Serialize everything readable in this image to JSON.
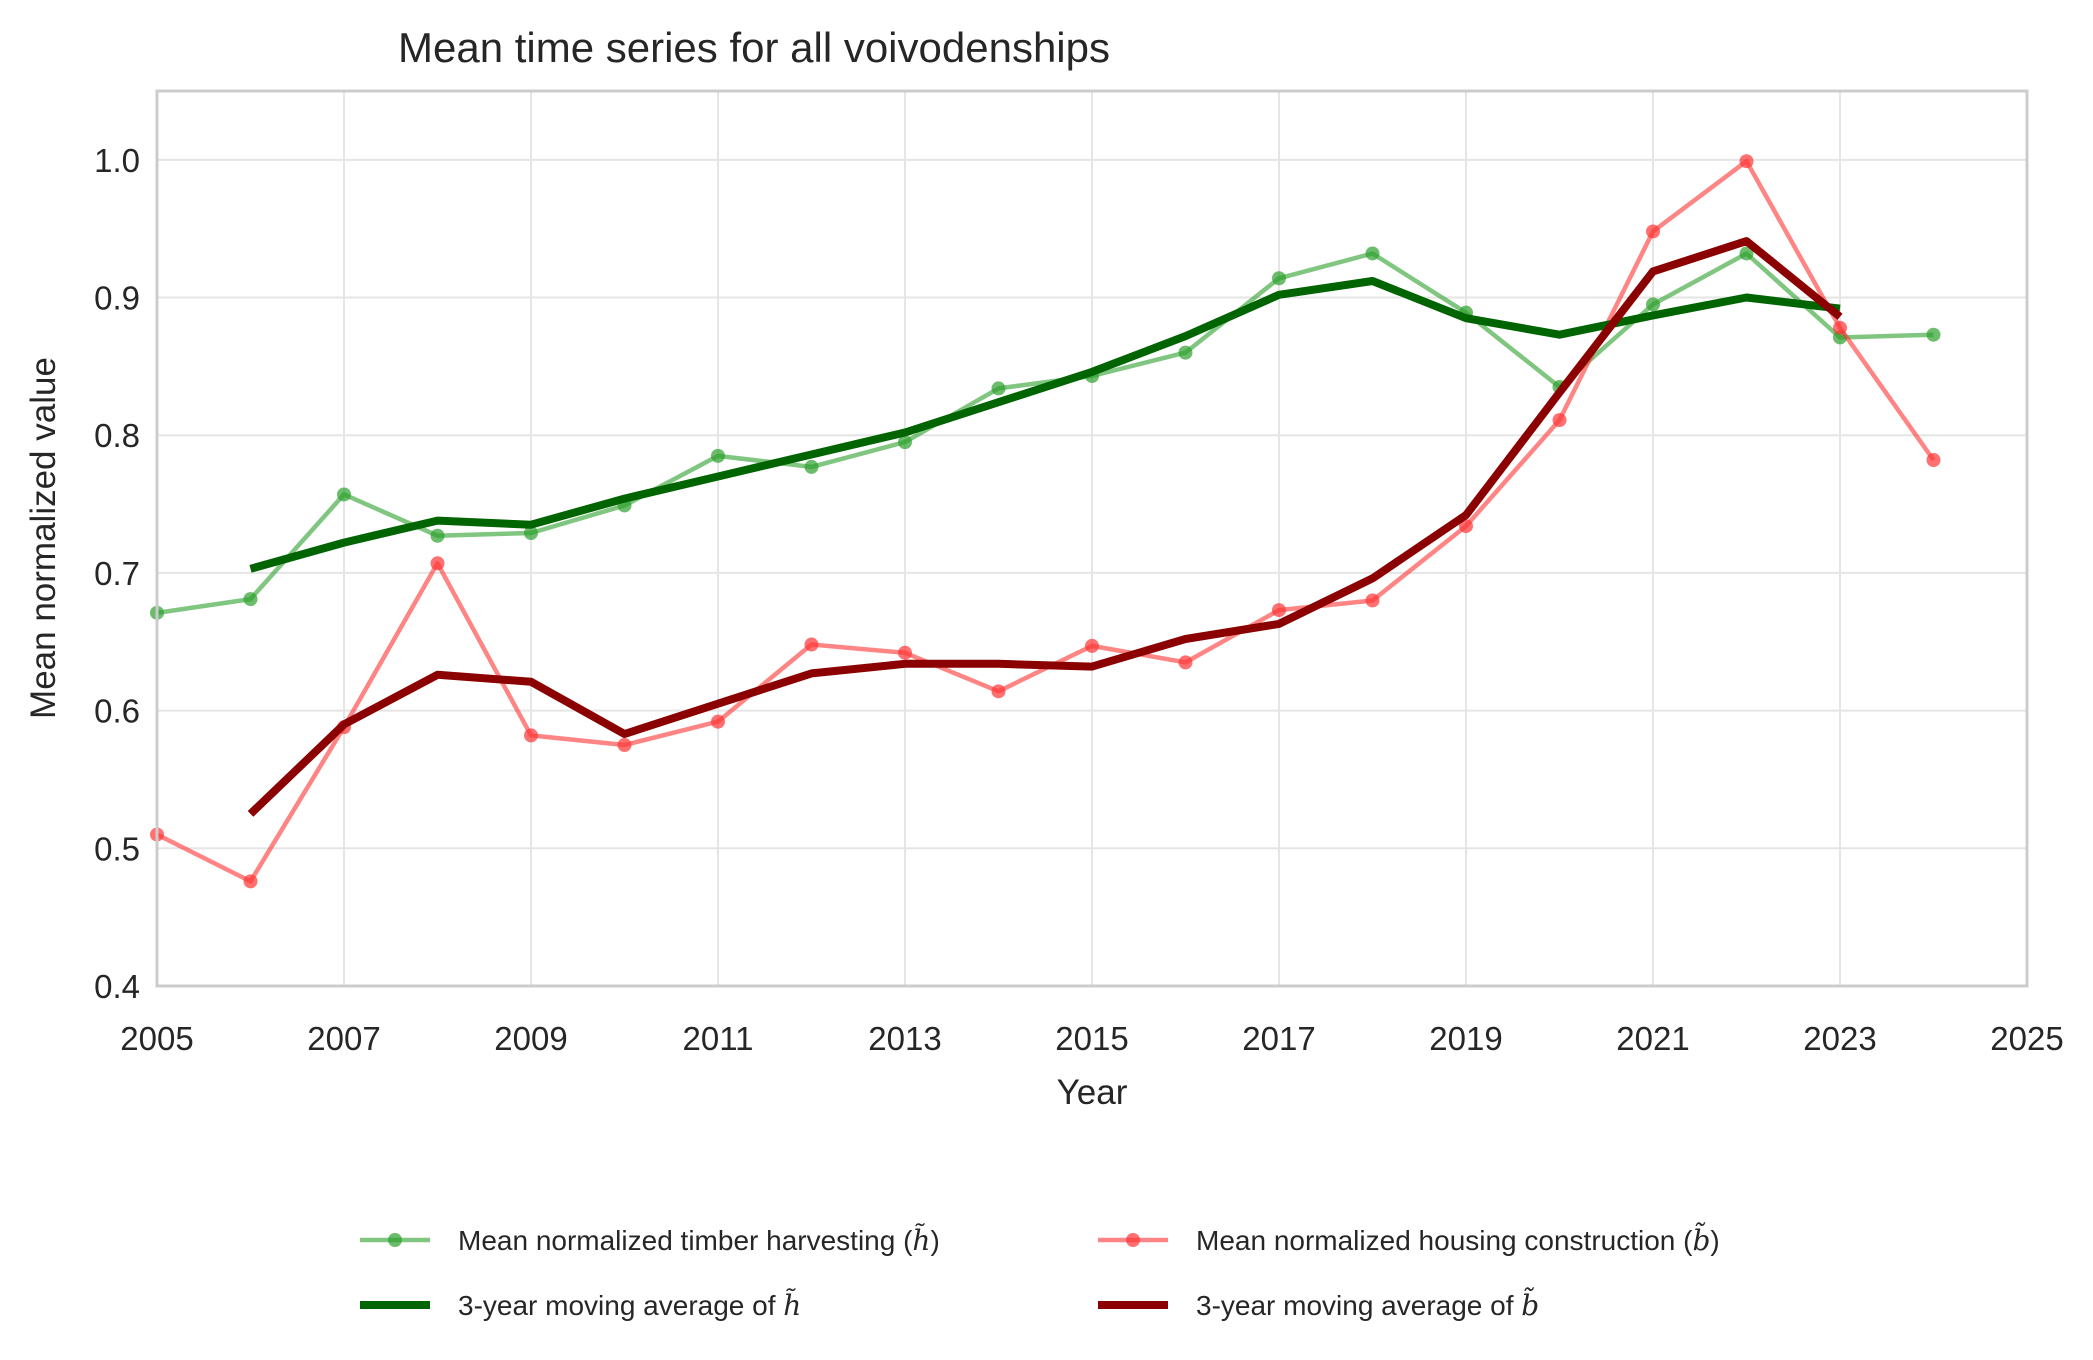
{
  "chart_data": {
    "type": "line",
    "title": "Mean time series for all voivodenships",
    "xlabel": "Year",
    "ylabel": "Mean normalized value",
    "xlim": [
      2005,
      2025
    ],
    "ylim": [
      0.4,
      1.05
    ],
    "xticks": [
      2005,
      2007,
      2009,
      2011,
      2013,
      2015,
      2017,
      2019,
      2021,
      2023,
      2025
    ],
    "yticks": [
      0.4,
      0.5,
      0.6,
      0.7,
      0.8,
      0.9,
      1.0
    ],
    "xtick_labels": [
      "2005",
      "2007",
      "2009",
      "2011",
      "2013",
      "2015",
      "2017",
      "2019",
      "2021",
      "2023",
      "2025"
    ],
    "ytick_labels": [
      "0.4",
      "0.5",
      "0.6",
      "0.7",
      "0.8",
      "0.9",
      "1.0"
    ],
    "grid": true,
    "legend_position": "bottom-center",
    "series": [
      {
        "name": "Mean normalized timber harvesting (h̃)",
        "legend_main": "Mean normalized timber harvesting (",
        "legend_symbol": "h̃",
        "legend_tail": ")",
        "color": "#2ca02c",
        "style": "line-markers",
        "x": [
          2005,
          2006,
          2007,
          2008,
          2009,
          2010,
          2011,
          2012,
          2013,
          2014,
          2015,
          2016,
          2017,
          2018,
          2019,
          2020,
          2021,
          2022,
          2023,
          2024
        ],
        "values": [
          0.671,
          0.681,
          0.757,
          0.727,
          0.729,
          0.749,
          0.785,
          0.777,
          0.795,
          0.834,
          0.843,
          0.86,
          0.914,
          0.932,
          0.889,
          0.835,
          0.895,
          0.932,
          0.871,
          0.873
        ]
      },
      {
        "name": "Mean normalized housing construction (b̃)",
        "legend_main": "Mean normalized housing construction (",
        "legend_symbol": "b̃",
        "legend_tail": ")",
        "color": "#ff3333",
        "style": "line-markers",
        "x": [
          2005,
          2006,
          2007,
          2008,
          2009,
          2010,
          2011,
          2012,
          2013,
          2014,
          2015,
          2016,
          2017,
          2018,
          2019,
          2020,
          2021,
          2022,
          2023,
          2024
        ],
        "values": [
          0.51,
          0.476,
          0.588,
          0.707,
          0.582,
          0.575,
          0.592,
          0.648,
          0.642,
          0.614,
          0.647,
          0.635,
          0.673,
          0.68,
          0.734,
          0.811,
          0.948,
          0.999,
          0.878,
          0.782
        ]
      },
      {
        "name": "3-year moving average of h̃",
        "legend_main": "3-year moving average of ",
        "legend_symbol": "h̃",
        "legend_tail": "",
        "color": "#006400",
        "style": "thick-line",
        "x": [
          2006,
          2007,
          2008,
          2009,
          2010,
          2011,
          2012,
          2013,
          2014,
          2015,
          2016,
          2017,
          2018,
          2019,
          2020,
          2021,
          2022,
          2023
        ],
        "values": [
          0.703,
          0.722,
          0.738,
          0.735,
          0.754,
          0.77,
          0.786,
          0.802,
          0.824,
          0.846,
          0.872,
          0.902,
          0.912,
          0.885,
          0.873,
          0.887,
          0.9,
          0.892
        ]
      },
      {
        "name": "3-year moving average of b̃",
        "legend_main": "3-year moving average of ",
        "legend_symbol": "b̃",
        "legend_tail": "",
        "color": "#8b0000",
        "style": "thick-line",
        "x": [
          2006,
          2007,
          2008,
          2009,
          2010,
          2011,
          2012,
          2013,
          2014,
          2015,
          2016,
          2017,
          2018,
          2019,
          2020,
          2021,
          2022,
          2023
        ],
        "values": [
          0.525,
          0.59,
          0.626,
          0.621,
          0.583,
          0.605,
          0.627,
          0.634,
          0.634,
          0.632,
          0.652,
          0.663,
          0.696,
          0.742,
          0.831,
          0.919,
          0.941,
          0.886
        ]
      }
    ]
  }
}
